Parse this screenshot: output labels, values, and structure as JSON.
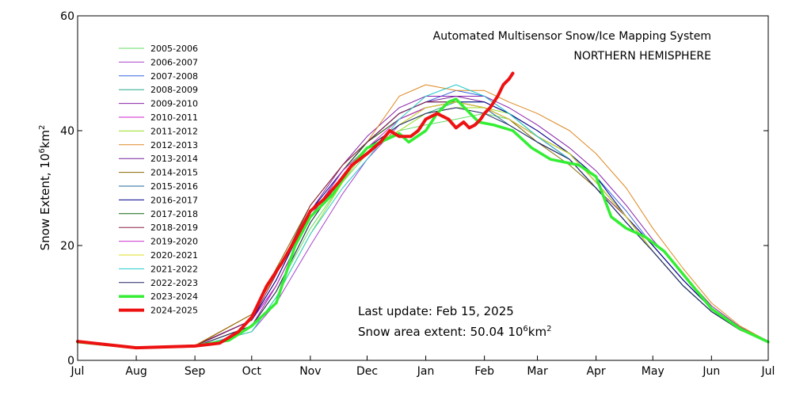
{
  "chart_data": {
    "type": "line",
    "title": "Automated  Multisensor Snow/Ice Mapping System",
    "subtitle": "NORTHERN HEMISPHERE",
    "ylabel": "Snow Extent, 10⁶km²",
    "ylabel_parts": {
      "main": "Snow Extent, 10",
      "exp": "6",
      "unit": "km",
      "unit_exp": "2"
    },
    "xlabel": "",
    "ylim": [
      0,
      60
    ],
    "yticks": [
      0,
      20,
      40,
      60
    ],
    "xlim": [
      0,
      365
    ],
    "x_ticks": [
      {
        "label": "Jul",
        "day": 0
      },
      {
        "label": "Aug",
        "day": 31
      },
      {
        "label": "Sep",
        "day": 62
      },
      {
        "label": "Oct",
        "day": 92
      },
      {
        "label": "Nov",
        "day": 123
      },
      {
        "label": "Dec",
        "day": 153
      },
      {
        "label": "Jan",
        "day": 184
      },
      {
        "label": "Feb",
        "day": 215
      },
      {
        "label": "Mar",
        "day": 243
      },
      {
        "label": "Apr",
        "day": 274
      },
      {
        "label": "May",
        "day": 304
      },
      {
        "label": "Jun",
        "day": 335
      },
      {
        "label": "Jul",
        "day": 365
      }
    ],
    "legend_position": "upper-left",
    "annotations": {
      "last_update": "Last update: Feb 15, 2025",
      "area_label": "Snow area extent: 50.04 10",
      "area_exp": "6",
      "area_unit": "km",
      "area_unit_exp": "2"
    },
    "series": [
      {
        "name": "2005-2006",
        "color": "#66dd66",
        "width": 1,
        "x": [
          0,
          31,
          62,
          92,
          105,
          123,
          140,
          153,
          170,
          184,
          200,
          215,
          228,
          243,
          260,
          274,
          290,
          304,
          320,
          335,
          350,
          365
        ],
        "y": [
          3.2,
          2.2,
          2.4,
          6,
          12,
          23,
          31,
          36,
          40,
          41,
          42,
          43,
          42,
          38,
          35,
          30,
          24,
          19,
          13,
          8.5,
          5.5,
          3.2
        ]
      },
      {
        "name": "2006-2007",
        "color": "#aa44cc",
        "width": 1,
        "x": [
          0,
          31,
          62,
          92,
          105,
          123,
          140,
          153,
          170,
          184,
          200,
          215,
          228,
          243,
          260,
          274,
          290,
          304,
          320,
          335,
          350,
          365
        ],
        "y": [
          3.1,
          2.1,
          2.3,
          5,
          10,
          20,
          29,
          35,
          41,
          43,
          44,
          44,
          42,
          39,
          36,
          31,
          25,
          19,
          13,
          8.5,
          5.3,
          3.1
        ]
      },
      {
        "name": "2007-2008",
        "color": "#3366dd",
        "width": 1,
        "x": [
          0,
          31,
          62,
          92,
          105,
          123,
          140,
          153,
          170,
          184,
          200,
          215,
          228,
          243,
          260,
          274,
          290,
          304,
          320,
          335,
          350,
          365
        ],
        "y": [
          3.3,
          2.2,
          2.5,
          7,
          13,
          25,
          33,
          38,
          43,
          45,
          47,
          46,
          43,
          40,
          36,
          32,
          26,
          20,
          14,
          9,
          5.5,
          3.3
        ]
      },
      {
        "name": "2008-2009",
        "color": "#22aa88",
        "width": 1,
        "x": [
          0,
          31,
          62,
          92,
          105,
          123,
          140,
          153,
          170,
          184,
          200,
          215,
          228,
          243,
          260,
          274,
          290,
          304,
          320,
          335,
          350,
          365
        ],
        "y": [
          3.2,
          2.1,
          2.4,
          6,
          12,
          24,
          32,
          37,
          41,
          43,
          45,
          45,
          43,
          39,
          36,
          31,
          25,
          19,
          13,
          8.5,
          5.3,
          3.2
        ]
      },
      {
        "name": "2009-2010",
        "color": "#8822aa",
        "width": 1,
        "x": [
          0,
          31,
          62,
          92,
          105,
          123,
          140,
          153,
          170,
          184,
          200,
          215,
          228,
          243,
          260,
          274,
          290,
          304,
          320,
          335,
          350,
          365
        ],
        "y": [
          3.4,
          2.3,
          2.6,
          7,
          14,
          26,
          34,
          39,
          44,
          46,
          46,
          46,
          44,
          41,
          37,
          33,
          27,
          21,
          15,
          9.5,
          5.8,
          3.4
        ]
      },
      {
        "name": "2010-2011",
        "color": "#cc22cc",
        "width": 1,
        "x": [
          0,
          31,
          62,
          92,
          105,
          123,
          140,
          153,
          170,
          184,
          200,
          215,
          228,
          243,
          260,
          274,
          290,
          304,
          320,
          335,
          350,
          365
        ],
        "y": [
          3.2,
          2.2,
          2.5,
          7,
          13,
          25,
          33,
          38,
          42,
          44,
          45,
          44,
          42,
          39,
          35,
          30,
          24,
          19,
          13,
          8.5,
          5.4,
          3.2
        ]
      },
      {
        "name": "2011-2012",
        "color": "#99dd22",
        "width": 1,
        "x": [
          0,
          31,
          62,
          92,
          105,
          123,
          140,
          153,
          170,
          184,
          200,
          215,
          228,
          243,
          260,
          274,
          290,
          304,
          320,
          335,
          350,
          365
        ],
        "y": [
          3.1,
          2.1,
          2.3,
          5,
          11,
          22,
          31,
          37,
          40,
          43,
          44,
          44,
          43,
          39,
          36,
          31,
          25,
          19,
          13,
          8.5,
          5.3,
          3.1
        ]
      },
      {
        "name": "2012-2013",
        "color": "#dd8822",
        "width": 1,
        "x": [
          0,
          31,
          62,
          92,
          105,
          123,
          140,
          153,
          170,
          184,
          200,
          215,
          228,
          243,
          260,
          274,
          290,
          304,
          320,
          335,
          350,
          365
        ],
        "y": [
          3.3,
          2.3,
          2.6,
          8,
          15,
          27,
          34,
          38,
          46,
          48,
          47,
          47,
          45,
          43,
          40,
          36,
          30,
          23,
          16,
          10,
          6,
          3.3
        ]
      },
      {
        "name": "2013-2014",
        "color": "#772299",
        "width": 1,
        "x": [
          0,
          31,
          62,
          92,
          105,
          123,
          140,
          153,
          170,
          184,
          200,
          215,
          228,
          243,
          260,
          274,
          290,
          304,
          320,
          335,
          350,
          365
        ],
        "y": [
          3.2,
          2.2,
          2.4,
          6,
          13,
          25,
          33,
          38,
          43,
          45,
          46,
          45,
          43,
          40,
          36,
          31,
          25,
          20,
          14,
          9,
          5.5,
          3.2
        ]
      },
      {
        "name": "2014-2015",
        "color": "#886600",
        "width": 1,
        "x": [
          0,
          31,
          62,
          92,
          105,
          123,
          140,
          153,
          170,
          184,
          200,
          215,
          228,
          243,
          260,
          274,
          290,
          304,
          320,
          335,
          350,
          365
        ],
        "y": [
          3.3,
          2.2,
          2.5,
          8,
          16,
          27,
          34,
          38,
          42,
          44,
          45,
          44,
          42,
          38,
          34,
          30,
          24,
          19,
          13,
          8.5,
          5.5,
          3.3
        ]
      },
      {
        "name": "2015-2016",
        "color": "#226699",
        "width": 1,
        "x": [
          0,
          31,
          62,
          92,
          105,
          123,
          140,
          153,
          170,
          184,
          200,
          215,
          228,
          243,
          260,
          274,
          290,
          304,
          320,
          335,
          350,
          365
        ],
        "y": [
          3.2,
          2.1,
          2.4,
          6,
          12,
          24,
          32,
          37,
          41,
          44,
          45,
          44,
          41,
          38,
          35,
          30,
          24,
          19,
          13,
          8.5,
          5.3,
          3.2
        ]
      },
      {
        "name": "2016-2017",
        "color": "#000088",
        "width": 1,
        "x": [
          0,
          31,
          62,
          92,
          105,
          123,
          140,
          153,
          170,
          184,
          200,
          215,
          228,
          243,
          260,
          274,
          290,
          304,
          320,
          335,
          350,
          365
        ],
        "y": [
          3.3,
          2.2,
          2.5,
          7,
          14,
          26,
          33,
          38,
          43,
          45,
          45,
          45,
          43,
          40,
          36,
          32,
          25,
          20,
          14,
          9,
          5.5,
          3.3
        ]
      },
      {
        "name": "2017-2018",
        "color": "#116611",
        "width": 1,
        "x": [
          0,
          31,
          62,
          92,
          105,
          123,
          140,
          153,
          170,
          184,
          200,
          215,
          228,
          243,
          260,
          274,
          290,
          304,
          320,
          335,
          350,
          365
        ],
        "y": [
          3.2,
          2.2,
          2.4,
          6,
          13,
          25,
          33,
          38,
          42,
          44,
          45,
          44,
          42,
          39,
          36,
          31,
          25,
          19,
          13,
          8.5,
          5.4,
          3.2
        ]
      },
      {
        "name": "2018-2019",
        "color": "#882244",
        "width": 1,
        "x": [
          0,
          31,
          62,
          92,
          105,
          123,
          140,
          153,
          170,
          184,
          200,
          215,
          228,
          243,
          260,
          274,
          290,
          304,
          320,
          335,
          350,
          365
        ],
        "y": [
          3.3,
          2.2,
          2.5,
          7,
          15,
          27,
          34,
          38,
          43,
          45,
          45,
          44,
          42,
          39,
          35,
          30,
          25,
          19,
          13,
          8.5,
          5.5,
          3.3
        ]
      },
      {
        "name": "2019-2020",
        "color": "#cc33cc",
        "width": 1,
        "x": [
          0,
          31,
          62,
          92,
          105,
          123,
          140,
          153,
          170,
          184,
          200,
          215,
          228,
          243,
          260,
          274,
          290,
          304,
          320,
          335,
          350,
          365
        ],
        "y": [
          3.2,
          2.2,
          2.4,
          6,
          13,
          25,
          33,
          37,
          42,
          44,
          45,
          44,
          42,
          39,
          35,
          30,
          24,
          19,
          13,
          8.5,
          5.3,
          3.2
        ]
      },
      {
        "name": "2020-2021",
        "color": "#dddd22",
        "width": 1,
        "x": [
          0,
          31,
          62,
          92,
          105,
          123,
          140,
          153,
          170,
          184,
          200,
          215,
          228,
          243,
          260,
          274,
          290,
          304,
          320,
          335,
          350,
          365
        ],
        "y": [
          3.1,
          2.1,
          2.4,
          6,
          12,
          24,
          32,
          37,
          41,
          44,
          45,
          44,
          42,
          39,
          36,
          31,
          25,
          19,
          13,
          8.5,
          5.3,
          3.1
        ]
      },
      {
        "name": "2021-2022",
        "color": "#22cccc",
        "width": 1,
        "x": [
          0,
          31,
          62,
          92,
          105,
          123,
          140,
          153,
          170,
          184,
          200,
          215,
          228,
          243,
          260,
          274,
          290,
          304,
          320,
          335,
          350,
          365
        ],
        "y": [
          3.2,
          2.2,
          2.4,
          5,
          11,
          22,
          30,
          35,
          42,
          46,
          48,
          46,
          43,
          39,
          35,
          30,
          24,
          19,
          13,
          8.5,
          5.5,
          3.2
        ]
      },
      {
        "name": "2022-2023",
        "color": "#222266",
        "width": 1,
        "x": [
          0,
          31,
          62,
          92,
          105,
          123,
          140,
          153,
          170,
          184,
          200,
          215,
          228,
          243,
          260,
          274,
          290,
          304,
          320,
          335,
          350,
          365
        ],
        "y": [
          3.2,
          2.1,
          2.4,
          6,
          12,
          24,
          32,
          37,
          41,
          43,
          44,
          43,
          41,
          38,
          35,
          30,
          24,
          19,
          13,
          8.5,
          5.3,
          3.2
        ]
      },
      {
        "name": "2023-2024",
        "color": "#33ee33",
        "width": 3.5,
        "x": [
          0,
          31,
          62,
          80,
          92,
          105,
          115,
          123,
          135,
          145,
          153,
          160,
          170,
          175,
          184,
          190,
          196,
          200,
          206,
          212,
          220,
          230,
          240,
          250,
          265,
          274,
          282,
          290,
          300,
          310,
          320,
          335,
          350,
          365
        ],
        "y": [
          3.2,
          2.2,
          2.5,
          3.5,
          6,
          10,
          20,
          25,
          29,
          34,
          37,
          38,
          39.5,
          38,
          40,
          43,
          45,
          45.5,
          43.5,
          41.5,
          41,
          40,
          37,
          35,
          34,
          32,
          25,
          23,
          21.5,
          19,
          15,
          9,
          5.5,
          3.2
        ]
      },
      {
        "name": "2024-2025",
        "color": "#ee1111",
        "width": 4,
        "x": [
          0,
          31,
          62,
          75,
          85,
          92,
          100,
          108,
          115,
          123,
          130,
          138,
          145,
          153,
          160,
          165,
          170,
          176,
          180,
          184,
          190,
          196,
          200,
          204,
          207,
          210,
          213,
          215,
          218,
          222,
          225,
          228,
          230
        ],
        "y": [
          3.3,
          2.2,
          2.5,
          3,
          5,
          7.5,
          13,
          17,
          21,
          26,
          28,
          31,
          34,
          36,
          38,
          40,
          39,
          39,
          40,
          42,
          43,
          42,
          40.5,
          41.5,
          40.5,
          41,
          42,
          43,
          44,
          46,
          48,
          49,
          50
        ]
      }
    ]
  }
}
